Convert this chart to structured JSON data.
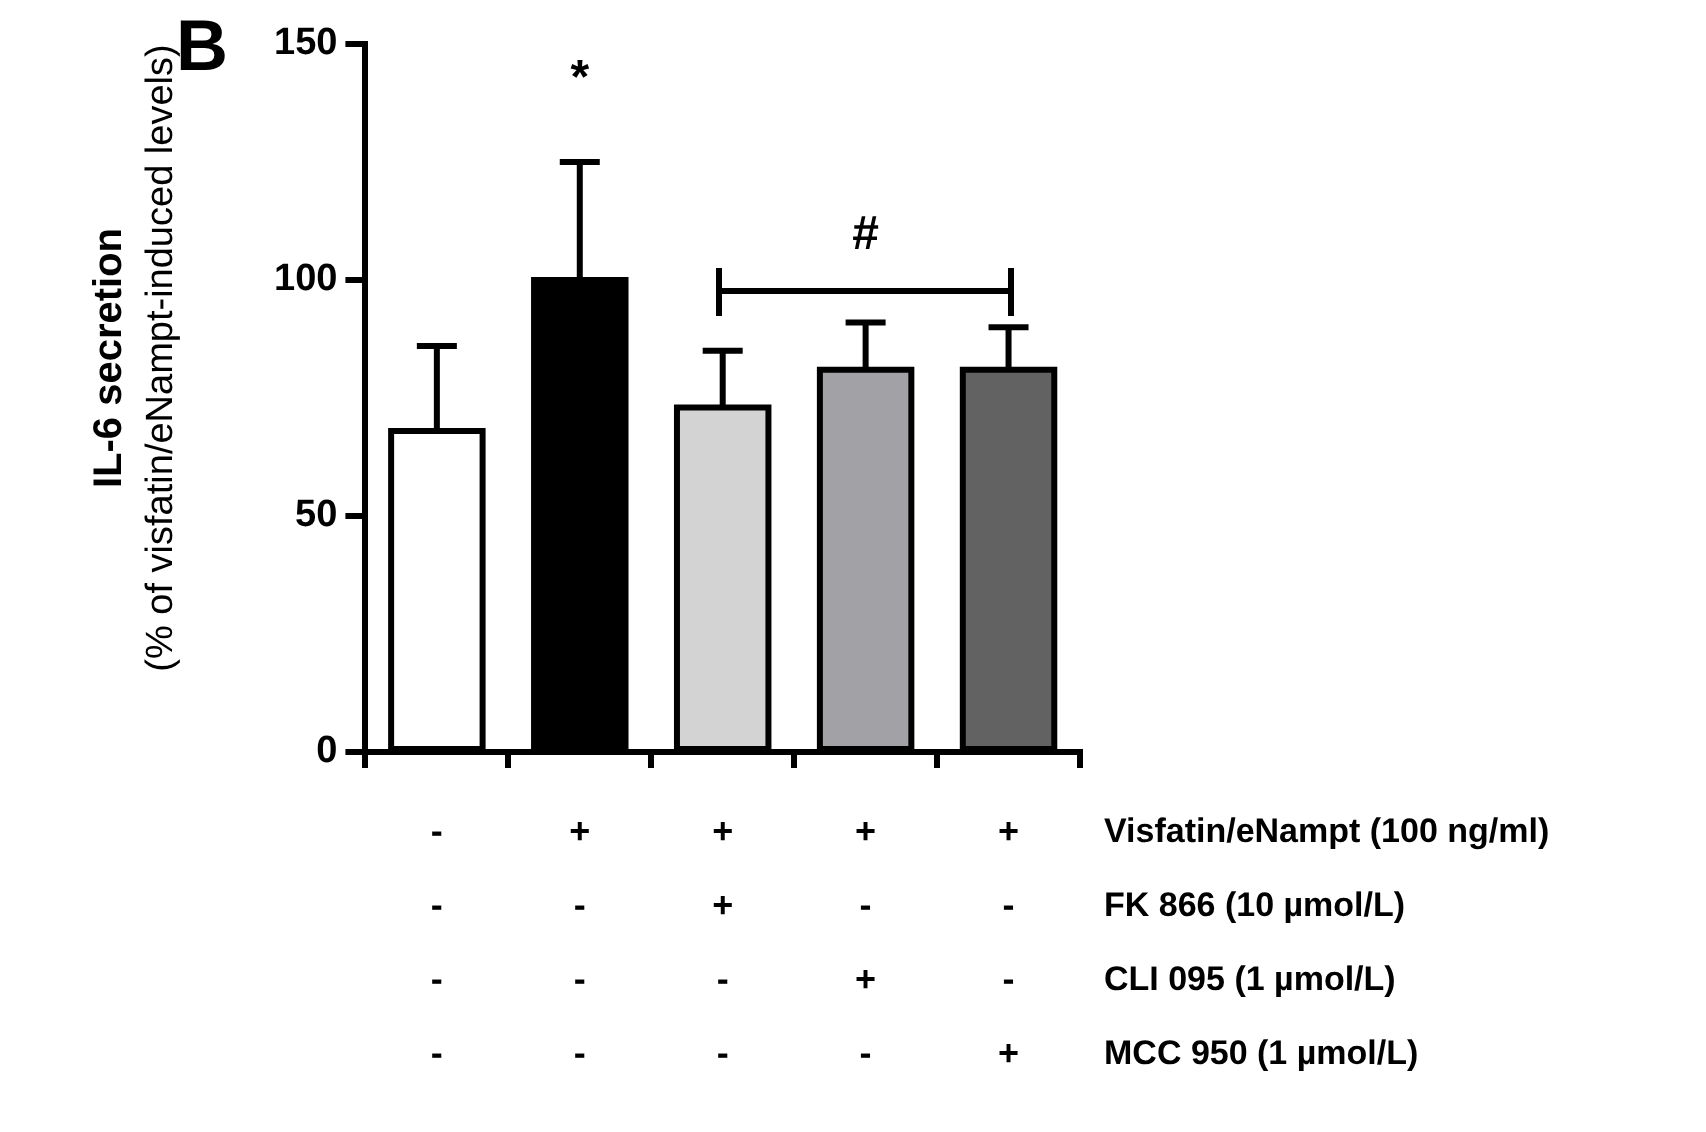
{
  "chart_data": {
    "type": "bar",
    "ylabel": "IL-6 secretion\n(% of visfatin/eNampt-induced levels)",
    "categories": [
      "-\n-\n-\n-",
      "+\n-\n-\n-",
      "+\n+\n-\n-",
      "+\n-\n+\n-",
      "+\n-\n-\n+"
    ],
    "values": [
      68,
      100,
      73,
      81,
      81
    ],
    "colors": [
      "#ffffff",
      "#000000",
      "#d3d3d3",
      "#a2a1a6",
      "#626262"
    ],
    "errors": [
      [
        68,
        86
      ],
      [
        100,
        125
      ],
      [
        73,
        85
      ],
      [
        81,
        91
      ],
      [
        81,
        90
      ]
    ],
    "ylim": [
      0,
      150
    ],
    "yticks": [
      0,
      50,
      100,
      150
    ],
    "grid": false,
    "legend": false,
    "annotations": [
      "B",
      "Visfatin/eNampt (100 ng/ml)",
      "FK 866 (10 µmol/L)",
      "CLI 095 (1 µmol/L)",
      "MCC 950 (1 µmol/L)",
      "*",
      "#"
    ]
  }
}
